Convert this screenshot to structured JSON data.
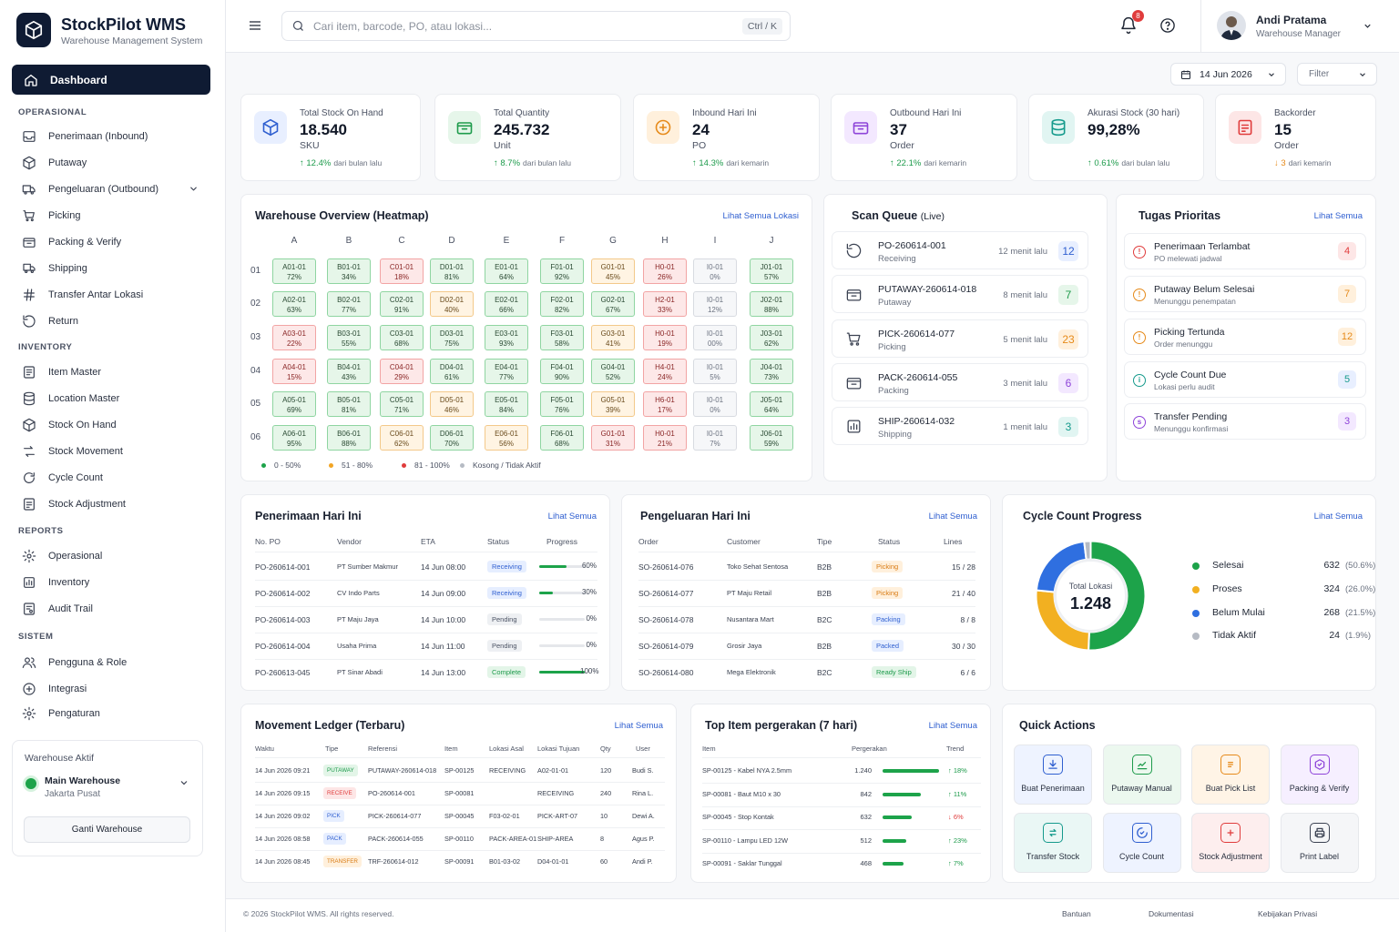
{
  "brand": {
    "title": "StockPilot WMS",
    "subtitle": "Warehouse Management System"
  },
  "sidebar": {
    "active": "Dashboard",
    "sections": [
      {
        "label": "OPERASIONAL",
        "items": [
          "Penerimaan (Inbound)",
          "Putaway",
          "Pengeluaran (Outbound)",
          "Picking",
          "Packing & Verify",
          "Shipping",
          "Transfer Antar Lokasi",
          "Return"
        ]
      },
      {
        "label": "INVENTORY",
        "items": [
          "Item Master",
          "Location Master",
          "Stock On Hand",
          "Stock Movement",
          "Cycle Count",
          "Stock Adjustment"
        ]
      },
      {
        "label": "REPORTS",
        "items": [
          "Operasional",
          "Inventory",
          "Audit Trail"
        ]
      },
      {
        "label": "SISTEM",
        "items": [
          "Pengguna & Role",
          "Integrasi",
          "Pengaturan"
        ]
      }
    ],
    "warehouse": {
      "label": "Warehouse Aktif",
      "name": "Main Warehouse",
      "location": "Jakarta Pusat",
      "button": "Ganti Warehouse"
    }
  },
  "topbar": {
    "search_placeholder": "Cari item, barcode, PO, atau lokasi...",
    "shortcut": "Ctrl / K",
    "notif_count": "8",
    "user_name": "Andi Pratama",
    "user_role": "Warehouse Manager"
  },
  "filters": {
    "date": "14 Jun 2026",
    "filter": "Filter"
  },
  "kpis": [
    {
      "label": "Total Stock On Hand",
      "value": "18.540",
      "unit": "SKU",
      "delta": "↑ 12.4%",
      "delta_note": "dari bulan lalu",
      "color": "#2f5fd0",
      "bg": "#e8efff",
      "delta_color": "#1d9b4b"
    },
    {
      "label": "Total Quantity",
      "value": "245.732",
      "unit": "Unit",
      "delta": "↑ 8.7%",
      "delta_note": "dari bulan lalu",
      "color": "#1d9b4b",
      "bg": "#e6f6ea",
      "delta_color": "#1d9b4b"
    },
    {
      "label": "Inbound Hari Ini",
      "value": "24",
      "unit": "PO",
      "delta": "↑ 14.3%",
      "delta_note": "dari kemarin",
      "color": "#e68a1a",
      "bg": "#fff0dc",
      "delta_color": "#1d9b4b"
    },
    {
      "label": "Outbound Hari Ini",
      "value": "37",
      "unit": "Order",
      "delta": "↑ 22.1%",
      "delta_note": "dari kemarin",
      "color": "#8e44d9",
      "bg": "#f3e8ff",
      "delta_color": "#1d9b4b"
    },
    {
      "label": "Akurasi Stock (30 hari)",
      "value": "99,28%",
      "unit": "",
      "delta": "↑ 0.61%",
      "delta_note": "dari bulan lalu",
      "color": "#159a8c",
      "bg": "#e1f5f2",
      "delta_color": "#1d9b4b"
    },
    {
      "label": "Backorder",
      "value": "15",
      "unit": "Order",
      "delta": "↓ 3",
      "delta_note": "dari kemarin",
      "color": "#e03c3c",
      "bg": "#fde6e6",
      "delta_color": "#e68a1a"
    }
  ],
  "heatmap": {
    "title": "Warehouse Overview (Heatmap)",
    "link": "Lihat Semua Lokasi",
    "cols": [
      "A",
      "B",
      "C",
      "D",
      "E",
      "F",
      "G",
      "H",
      "I",
      "J"
    ],
    "rows": [
      "01",
      "02",
      "03",
      "04",
      "05",
      "06"
    ],
    "cells": [
      [
        [
          "A01-01",
          "72%",
          "g"
        ],
        [
          "B01-01",
          "34%",
          "g"
        ],
        [
          "C01-01",
          "18%",
          "r"
        ],
        [
          "D01-01",
          "81%",
          "g"
        ],
        [
          "E01-01",
          "64%",
          "g"
        ],
        [
          "F01-01",
          "92%",
          "g"
        ],
        [
          "G01-01",
          "45%",
          "y"
        ],
        [
          "H0-01",
          "26%",
          "r"
        ],
        [
          "I0-01",
          "0%",
          "e"
        ],
        [
          "J01-01",
          "57%",
          "g"
        ]
      ],
      [
        [
          "A02-01",
          "63%",
          "g"
        ],
        [
          "B02-01",
          "77%",
          "g"
        ],
        [
          "C02-01",
          "91%",
          "g"
        ],
        [
          "D02-01",
          "40%",
          "y"
        ],
        [
          "E02-01",
          "66%",
          "g"
        ],
        [
          "F02-01",
          "82%",
          "g"
        ],
        [
          "G02-01",
          "67%",
          "g"
        ],
        [
          "H2-01",
          "33%",
          "r"
        ],
        [
          "I0-01",
          "12%",
          "e"
        ],
        [
          "J02-01",
          "88%",
          "g"
        ]
      ],
      [
        [
          "A03-01",
          "22%",
          "r"
        ],
        [
          "B03-01",
          "55%",
          "g"
        ],
        [
          "C03-01",
          "68%",
          "g"
        ],
        [
          "D03-01",
          "75%",
          "g"
        ],
        [
          "E03-01",
          "93%",
          "g"
        ],
        [
          "F03-01",
          "58%",
          "g"
        ],
        [
          "G03-01",
          "41%",
          "y"
        ],
        [
          "H0-01",
          "19%",
          "r"
        ],
        [
          "I0-01",
          "00%",
          "e"
        ],
        [
          "J03-01",
          "62%",
          "g"
        ]
      ],
      [
        [
          "A04-01",
          "15%",
          "r"
        ],
        [
          "B04-01",
          "43%",
          "g"
        ],
        [
          "C04-01",
          "29%",
          "r"
        ],
        [
          "D04-01",
          "61%",
          "g"
        ],
        [
          "E04-01",
          "77%",
          "g"
        ],
        [
          "F04-01",
          "90%",
          "g"
        ],
        [
          "G04-01",
          "52%",
          "g"
        ],
        [
          "H4-01",
          "24%",
          "r"
        ],
        [
          "I0-01",
          "5%",
          "e"
        ],
        [
          "J04-01",
          "73%",
          "g"
        ]
      ],
      [
        [
          "A05-01",
          "69%",
          "g"
        ],
        [
          "B05-01",
          "81%",
          "g"
        ],
        [
          "C05-01",
          "71%",
          "g"
        ],
        [
          "D05-01",
          "46%",
          "y"
        ],
        [
          "E05-01",
          "84%",
          "g"
        ],
        [
          "F05-01",
          "76%",
          "g"
        ],
        [
          "G05-01",
          "39%",
          "y"
        ],
        [
          "H6-01",
          "17%",
          "r"
        ],
        [
          "I0-01",
          "0%",
          "e"
        ],
        [
          "J05-01",
          "64%",
          "g"
        ]
      ],
      [
        [
          "A06-01",
          "95%",
          "g"
        ],
        [
          "B06-01",
          "88%",
          "g"
        ],
        [
          "C06-01",
          "62%",
          "y"
        ],
        [
          "D06-01",
          "70%",
          "g"
        ],
        [
          "E06-01",
          "56%",
          "y"
        ],
        [
          "F06-01",
          "68%",
          "g"
        ],
        [
          "G01-01",
          "31%",
          "r"
        ],
        [
          "H0-01",
          "21%",
          "r"
        ],
        [
          "I0-01",
          "7%",
          "e"
        ],
        [
          "J06-01",
          "59%",
          "g"
        ]
      ]
    ],
    "legend": [
      {
        "label": "0 - 50%",
        "color": "#1da34a"
      },
      {
        "label": "51 - 80%",
        "color": "#f2a524"
      },
      {
        "label": "81 - 100%",
        "color": "#e03c3c"
      },
      {
        "label": "Kosong / Tidak Aktif",
        "color": "#b6bbc4"
      }
    ]
  },
  "scan_queue": {
    "title": "Scan Queue",
    "live": "(Live)",
    "items": [
      {
        "code": "PO-260614-001",
        "type": "Receiving",
        "time": "12 menit lalu",
        "count": "12",
        "color": "#2f5fd0",
        "bg": "#e8efff"
      },
      {
        "code": "PUTAWAY-260614-018",
        "type": "Putaway",
        "time": "8 menit lalu",
        "count": "7",
        "color": "#1d9b4b",
        "bg": "#e6f6ea"
      },
      {
        "code": "PICK-260614-077",
        "type": "Picking",
        "time": "5 menit lalu",
        "count": "23",
        "color": "#e68a1a",
        "bg": "#fff0dc"
      },
      {
        "code": "PACK-260614-055",
        "type": "Packing",
        "time": "3 menit lalu",
        "count": "6",
        "color": "#8e44d9",
        "bg": "#f3e8ff"
      },
      {
        "code": "SHIP-260614-032",
        "type": "Shipping",
        "time": "1 menit lalu",
        "count": "3",
        "color": "#159a8c",
        "bg": "#e1f5f2"
      }
    ]
  },
  "tasks": {
    "title": "Tugas Prioritas",
    "link": "Lihat Semua",
    "items": [
      {
        "title": "Penerimaan Terlambat",
        "sub": "PO melewati jadwal",
        "count": "4",
        "color": "#e03c3c",
        "bg": "#fde6e6",
        "glyph": "!"
      },
      {
        "title": "Putaway Belum Selesai",
        "sub": "Menunggu penempatan",
        "count": "7",
        "color": "#e68a1a",
        "bg": "#fff0dc",
        "glyph": "!"
      },
      {
        "title": "Picking Tertunda",
        "sub": "Order menunggu",
        "count": "12",
        "color": "#e68a1a",
        "bg": "#fff0dc",
        "glyph": "!"
      },
      {
        "title": "Cycle Count Due",
        "sub": "Lokasi perlu audit",
        "count": "5",
        "color": "#159a8c",
        "bg": "#e8efff",
        "glyph": "i"
      },
      {
        "title": "Transfer Pending",
        "sub": "Menunggu konfirmasi",
        "count": "3",
        "color": "#8e44d9",
        "bg": "#f3e8ff",
        "glyph": "s"
      }
    ]
  },
  "inbound": {
    "title": "Penerimaan Hari Ini",
    "link": "Lihat Semua",
    "headers": [
      "No. PO",
      "Vendor",
      "ETA",
      "Status",
      "Progress"
    ],
    "rows": [
      {
        "po": "PO-260614-001",
        "vendor": "PT Sumber Makmur",
        "eta": "14 Jun 08:00",
        "status": "Receiving",
        "progress": 0.6,
        "pct": "60%"
      },
      {
        "po": "PO-260614-002",
        "vendor": "CV Indo Parts",
        "eta": "14 Jun 09:00",
        "status": "Receiving",
        "progress": 0.3,
        "pct": "30%"
      },
      {
        "po": "PO-260614-003",
        "vendor": "PT Maju Jaya",
        "eta": "14 Jun 10:00",
        "status": "Pending",
        "progress": 0,
        "pct": "0%"
      },
      {
        "po": "PO-260614-004",
        "vendor": "Usaha Prima",
        "eta": "14 Jun 11:00",
        "status": "Pending",
        "progress": 0,
        "pct": "0%"
      },
      {
        "po": "PO-260613-045",
        "vendor": "PT Sinar Abadi",
        "eta": "14 Jun 13:00",
        "status": "Complete",
        "progress": 1,
        "pct": "100%"
      }
    ]
  },
  "outbound": {
    "title": "Pengeluaran Hari Ini",
    "link": "Lihat Semua",
    "headers": [
      "Order",
      "Customer",
      "Tipe",
      "Status",
      "Lines"
    ],
    "rows": [
      {
        "order": "SO-260614-076",
        "customer": "Toko Sehat Sentosa",
        "type": "B2B",
        "status": "Picking",
        "lines": "15 / 28"
      },
      {
        "order": "SO-260614-077",
        "customer": "PT Maju Retail",
        "type": "B2B",
        "status": "Picking",
        "lines": "21 / 40"
      },
      {
        "order": "SO-260614-078",
        "customer": "Nusantara Mart",
        "type": "B2C",
        "status": "Packing",
        "lines": "8 / 8"
      },
      {
        "order": "SO-260614-079",
        "customer": "Grosir Jaya",
        "type": "B2B",
        "status": "Packed",
        "lines": "30 / 30"
      },
      {
        "order": "SO-260614-080",
        "customer": "Mega Elektronik",
        "type": "B2C",
        "status": "Ready Ship",
        "lines": "6 / 6"
      }
    ]
  },
  "cycle": {
    "title": "Cycle Count Progress",
    "link": "Lihat Semua",
    "center_label": "Total Lokasi",
    "center_value": "1.248",
    "chart_data": {
      "type": "pie",
      "categories": [
        "Selesai",
        "Proses",
        "Belum Mulai",
        "Tidak Aktif"
      ],
      "values": [
        632,
        324,
        268,
        24
      ],
      "percent_labels": [
        "(50.6%)",
        "(26.0%)",
        "(21.5%)",
        "(1.9%)"
      ],
      "colors": [
        "#1da34a",
        "#f2b021",
        "#2f6fe0",
        "#b6bbc4"
      ]
    }
  },
  "ledger": {
    "title": "Movement Ledger (Terbaru)",
    "link": "Lihat Semua",
    "headers": [
      "Waktu",
      "Tipe",
      "Referensi",
      "Item",
      "Lokasi Asal",
      "Lokasi Tujuan",
      "Qty",
      "User"
    ],
    "rows": [
      {
        "time": "14 Jun 2026 09:21",
        "type": "PUTAWAY",
        "ref": "PUTAWAY-260614-018",
        "item": "SP-00125",
        "from": "RECEIVING",
        "to": "A02-01-01",
        "qty": "120",
        "user": "Budi S."
      },
      {
        "time": "14 Jun 2026 09:15",
        "type": "RECEIVE",
        "ref": "PO-260614-001",
        "item": "SP-00081",
        "from": "",
        "to": "RECEIVING",
        "qty": "240",
        "user": "Rina L."
      },
      {
        "time": "14 Jun 2026 09:02",
        "type": "PICK",
        "ref": "PICK-260614-077",
        "item": "SP-00045",
        "from": "F03-02-01",
        "to": "PICK-ART-07",
        "qty": "10",
        "user": "Dewi A."
      },
      {
        "time": "14 Jun 2026 08:58",
        "type": "PACK",
        "ref": "PACK-260614-055",
        "item": "SP-00110",
        "from": "PACK-AREA-01",
        "to": "SHIP-AREA",
        "qty": "8",
        "user": "Agus P."
      },
      {
        "time": "14 Jun 2026 08:45",
        "type": "TRANSFER",
        "ref": "TRF-260614-012",
        "item": "SP-00091",
        "from": "B01-03-02",
        "to": "D04-01-01",
        "qty": "60",
        "user": "Andi P."
      }
    ]
  },
  "top_items": {
    "title": "Top Item pergerakan (7 hari)",
    "link": "Lihat Semua",
    "headers": [
      "Item",
      "Pergerakan",
      "Trend"
    ],
    "rows": [
      {
        "item": "SP-00125 - Kabel NYA 2.5mm",
        "moves": 1240,
        "moves_label": "1.240",
        "trend": "↑ 18%",
        "up": true
      },
      {
        "item": "SP-00081 - Baut M10 x 30",
        "moves": 842,
        "moves_label": "842",
        "trend": "↑ 11%",
        "up": true
      },
      {
        "item": "SP-00045 - Stop Kontak",
        "moves": 632,
        "moves_label": "632",
        "trend": "↓ 6%",
        "up": false
      },
      {
        "item": "SP-00110 - Lampu LED 12W",
        "moves": 512,
        "moves_label": "512",
        "trend": "↑ 23%",
        "up": true
      },
      {
        "item": "SP-00091 - Saklar Tunggal",
        "moves": 468,
        "moves_label": "468",
        "trend": "↑ 7%",
        "up": true
      }
    ]
  },
  "quick": {
    "title": "Quick Actions",
    "items": [
      {
        "label": "Buat Penerimaan",
        "color": "#2f5fd0",
        "bg": "#eef3ff",
        "icon": "download-icon"
      },
      {
        "label": "Putaway Manual",
        "color": "#1d9b4b",
        "bg": "#ecf8ef",
        "icon": "putaway-icon"
      },
      {
        "label": "Buat Pick List",
        "color": "#e68a1a",
        "bg": "#fff4e6",
        "icon": "picklist-icon"
      },
      {
        "label": "Packing & Verify",
        "color": "#8e44d9",
        "bg": "#f6efff",
        "icon": "package-icon"
      },
      {
        "label": "Transfer Stock",
        "color": "#159a8c",
        "bg": "#eaf7f5",
        "icon": "transfer-icon"
      },
      {
        "label": "Cycle Count",
        "color": "#2f5fd0",
        "bg": "#eef3ff",
        "icon": "cycle-icon"
      },
      {
        "label": "Stock Adjustment",
        "color": "#e03c3c",
        "bg": "#fdeeee",
        "icon": "adjust-icon"
      },
      {
        "label": "Print Label",
        "color": "#3b4252",
        "bg": "#f5f6f8",
        "icon": "printer-icon"
      }
    ]
  },
  "footer": {
    "copyright": "© 2026 StockPilot WMS. All rights reserved.",
    "links": [
      "Bantuan",
      "Dokumentasi",
      "Kebijakan Privasi"
    ]
  }
}
